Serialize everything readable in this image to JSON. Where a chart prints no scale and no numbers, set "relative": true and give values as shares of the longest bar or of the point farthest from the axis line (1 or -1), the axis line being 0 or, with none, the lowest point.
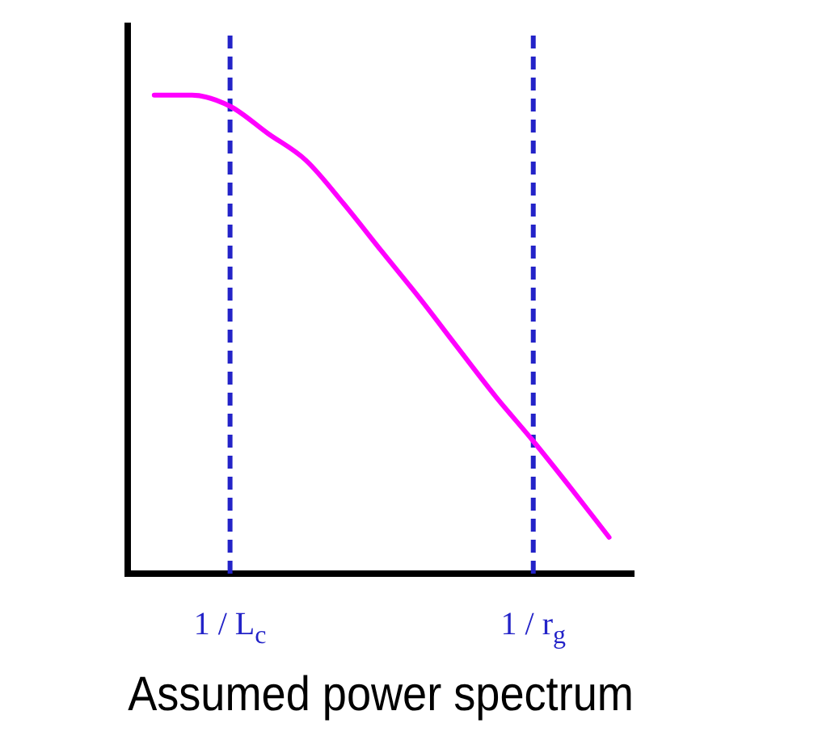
{
  "chart_data": {
    "type": "line",
    "title": "Assumed power spectrum",
    "relative": true,
    "categories": [
      null,
      null,
      "1 / L$_{c}$",
      null,
      null,
      null,
      null,
      null,
      null,
      null,
      "1 / r$_{g}$",
      null,
      null
    ],
    "series": [
      {
        "color": "#ff00ff",
        "values": [
          1,
          1,
          0.977,
          0.92,
          0.864,
          0.773,
          0.674,
          0.576,
          0.473,
          0.371,
          0.277,
          0.178,
          0.076
        ]
      }
    ],
    "ref_lines": [
      {
        "axis": "x",
        "value": "1 / L$_{c}$",
        "color": "#2323c8",
        "line_style": "dashed"
      },
      {
        "axis": "x",
        "value": "1 / r$_{g}$",
        "color": "#2323c8",
        "line_style": "dashed"
      }
    ],
    "grid": false,
    "legend": false,
    "marker": "none",
    "line_style": "solid"
  }
}
